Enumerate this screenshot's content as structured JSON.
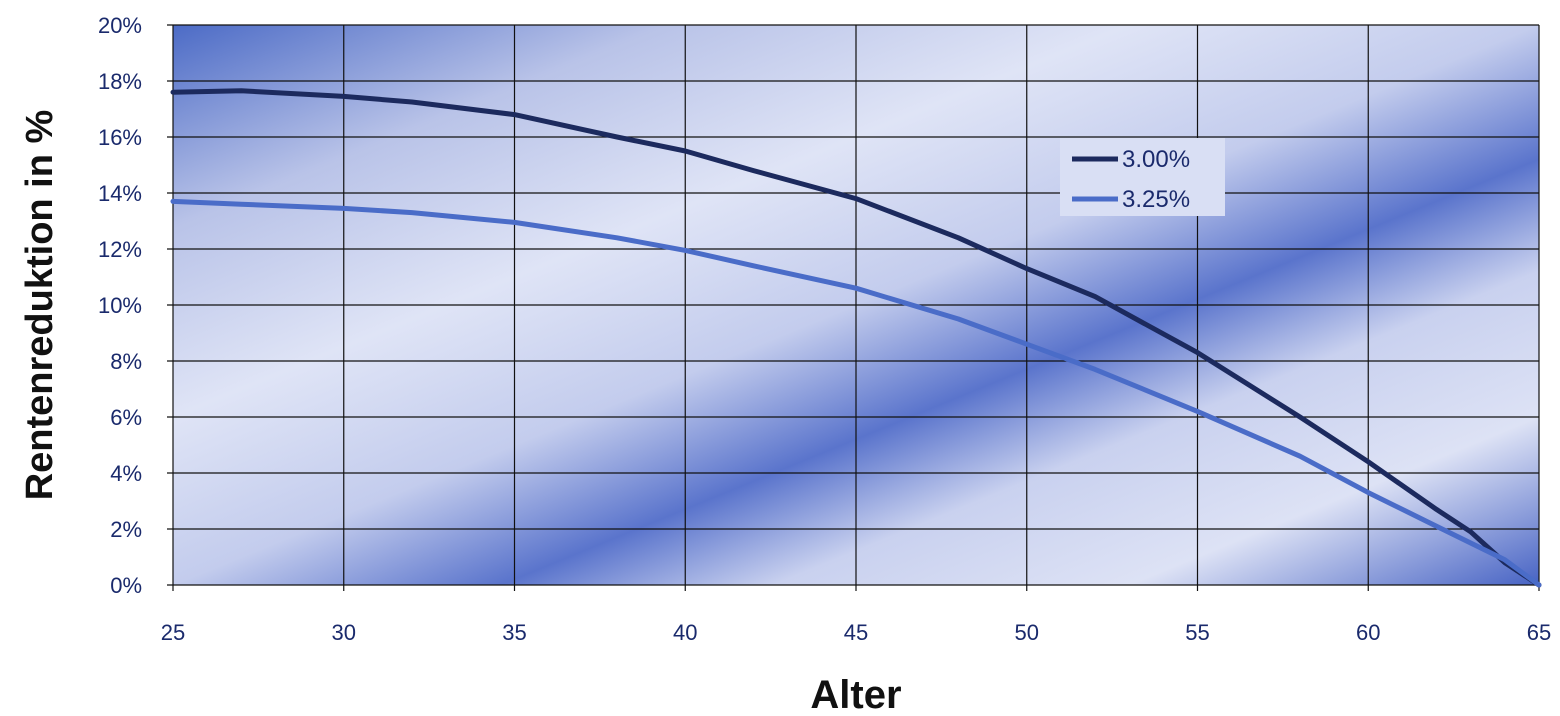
{
  "chart_data": {
    "type": "line",
    "title": "",
    "xlabel": "Alter",
    "ylabel": "Rentenreduktion in %",
    "xlim": [
      25,
      65
    ],
    "ylim": [
      0,
      20
    ],
    "x_ticks": [
      "25",
      "30",
      "35",
      "40",
      "45",
      "50",
      "55",
      "60",
      "65"
    ],
    "y_ticks": [
      "0%",
      "2%",
      "4%",
      "6%",
      "8%",
      "10%",
      "12%",
      "14%",
      "16%",
      "18%",
      "20%"
    ],
    "grid": true,
    "legend_position": "top-right",
    "series": [
      {
        "name": "3.00%",
        "color": "#1c2a5e",
        "points": [
          [
            25,
            17.6
          ],
          [
            27,
            17.65
          ],
          [
            30,
            17.45
          ],
          [
            32,
            17.25
          ],
          [
            35,
            16.8
          ],
          [
            38,
            16.0
          ],
          [
            40,
            15.5
          ],
          [
            42,
            14.8
          ],
          [
            45,
            13.8
          ],
          [
            48,
            12.4
          ],
          [
            50,
            11.3
          ],
          [
            52,
            10.3
          ],
          [
            55,
            8.3
          ],
          [
            58,
            6.0
          ],
          [
            60,
            4.4
          ],
          [
            62,
            2.7
          ],
          [
            63,
            1.9
          ],
          [
            64,
            0.8
          ],
          [
            65,
            0.0
          ]
        ]
      },
      {
        "name": "3.25%",
        "color": "#4a6cc8",
        "points": [
          [
            25,
            13.7
          ],
          [
            27,
            13.6
          ],
          [
            30,
            13.45
          ],
          [
            32,
            13.3
          ],
          [
            35,
            12.95
          ],
          [
            38,
            12.4
          ],
          [
            40,
            11.95
          ],
          [
            42,
            11.4
          ],
          [
            45,
            10.6
          ],
          [
            48,
            9.5
          ],
          [
            50,
            8.6
          ],
          [
            52,
            7.7
          ],
          [
            55,
            6.2
          ],
          [
            58,
            4.6
          ],
          [
            60,
            3.3
          ],
          [
            62,
            2.1
          ],
          [
            64,
            0.9
          ],
          [
            65,
            0.0
          ]
        ]
      }
    ]
  }
}
